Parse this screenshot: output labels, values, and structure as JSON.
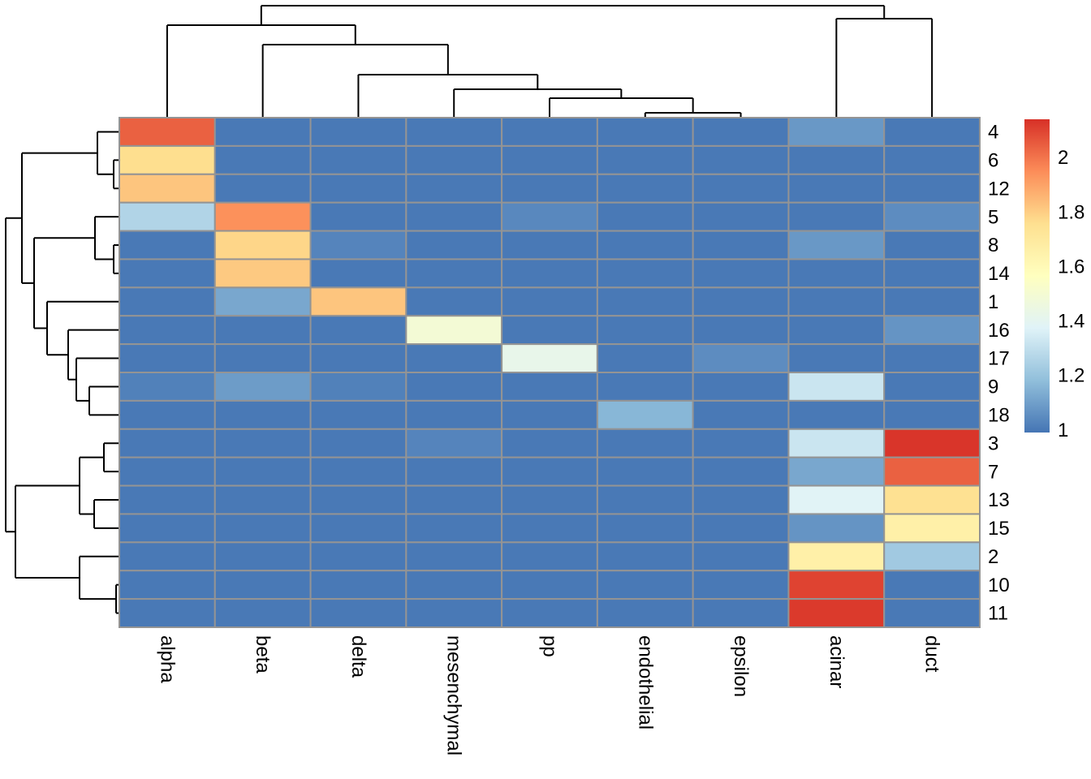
{
  "figure": {
    "kind": "clustered heatmap with row and column dendrograms",
    "background": "#ffffff"
  },
  "chart_data": {
    "type": "heatmap",
    "columns": [
      "alpha",
      "beta",
      "delta",
      "mesenchymal",
      "pp",
      "endothelial",
      "epsilon",
      "acinar",
      "duct"
    ],
    "rows": [
      "4",
      "6",
      "12",
      "5",
      "8",
      "14",
      "1",
      "16",
      "17",
      "9",
      "18",
      "3",
      "7",
      "13",
      "15",
      "2",
      "10",
      "11"
    ],
    "values": [
      [
        2.04,
        1.0,
        1.0,
        1.0,
        1.0,
        1.0,
        1.0,
        1.08,
        1.0
      ],
      [
        1.76,
        1.0,
        1.0,
        1.0,
        1.0,
        1.0,
        1.0,
        1.0,
        1.0
      ],
      [
        1.82,
        1.0,
        1.0,
        1.0,
        1.0,
        1.0,
        1.0,
        1.0,
        1.0
      ],
      [
        1.26,
        1.94,
        1.0,
        1.0,
        1.04,
        1.0,
        1.0,
        1.0,
        1.05
      ],
      [
        1.0,
        1.78,
        1.03,
        1.0,
        1.0,
        1.0,
        1.0,
        1.08,
        1.0
      ],
      [
        1.0,
        1.81,
        1.0,
        1.0,
        1.0,
        1.0,
        1.0,
        1.0,
        1.0
      ],
      [
        1.0,
        1.12,
        1.82,
        1.0,
        1.0,
        1.0,
        1.0,
        1.0,
        1.0
      ],
      [
        1.0,
        1.0,
        1.0,
        1.49,
        1.0,
        1.0,
        1.0,
        1.0,
        1.07
      ],
      [
        1.0,
        1.0,
        1.0,
        1.0,
        1.42,
        1.0,
        1.05,
        1.0,
        1.0
      ],
      [
        1.02,
        1.09,
        1.02,
        1.0,
        1.0,
        1.0,
        1.0,
        1.32,
        1.0
      ],
      [
        1.0,
        1.0,
        1.0,
        1.0,
        1.0,
        1.16,
        1.0,
        1.0,
        1.0
      ],
      [
        1.0,
        1.0,
        1.0,
        1.03,
        1.0,
        1.0,
        1.0,
        1.32,
        2.13
      ],
      [
        1.0,
        1.0,
        1.0,
        1.0,
        1.0,
        1.0,
        1.0,
        1.12,
        2.04
      ],
      [
        1.0,
        1.0,
        1.0,
        1.0,
        1.0,
        1.0,
        1.0,
        1.38,
        1.75
      ],
      [
        1.0,
        1.0,
        1.0,
        1.0,
        1.0,
        1.0,
        1.0,
        1.07,
        1.66
      ],
      [
        1.0,
        1.0,
        1.0,
        1.0,
        1.0,
        1.0,
        1.0,
        1.66,
        1.22
      ],
      [
        1.0,
        1.0,
        1.0,
        1.0,
        1.0,
        1.0,
        1.0,
        2.1,
        1.0
      ],
      [
        1.0,
        1.0,
        1.0,
        1.0,
        1.0,
        1.0,
        1.0,
        2.12,
        1.0
      ]
    ],
    "color_scale": {
      "palette": [
        "#4575B4",
        "#91BFDB",
        "#E0F3F8",
        "#FFFFBF",
        "#FEE090",
        "#FC8D59",
        "#D73027"
      ],
      "vmin": 0.99,
      "vmax": 2.14
    },
    "legend_ticks": [
      "2",
      "1.8",
      "1.6",
      "1.4",
      "1.2",
      "1"
    ],
    "legend_tick_values": [
      2,
      1.8,
      1.6,
      1.4,
      1.2,
      1
    ],
    "grid_color": "#949494",
    "dendrogram_color": "#000000",
    "row_dendrogram_merges": [
      {
        "a": "6",
        "b": "12",
        "pos": 140
      },
      {
        "a": "4",
        "b": "m0",
        "pos": 120
      },
      {
        "a": "8",
        "b": "14",
        "pos": 140
      },
      {
        "a": "5",
        "b": "m2",
        "pos": 117
      },
      {
        "a": "9",
        "b": "18",
        "pos": 110
      },
      {
        "a": "17",
        "b": "m4",
        "pos": 94
      },
      {
        "a": "16",
        "b": "m5",
        "pos": 84
      },
      {
        "a": "1",
        "b": "m6",
        "pos": 58
      },
      {
        "a": "m3",
        "b": "m7",
        "pos": 42
      },
      {
        "a": "m1",
        "b": "m8",
        "pos": 27
      },
      {
        "a": "3",
        "b": "7",
        "pos": 128
      },
      {
        "a": "13",
        "b": "15",
        "pos": 116
      },
      {
        "a": "m10",
        "b": "m11",
        "pos": 98
      },
      {
        "a": "10",
        "b": "11",
        "pos": 143
      },
      {
        "a": "2",
        "b": "m13",
        "pos": 98
      },
      {
        "a": "m12",
        "b": "m14",
        "pos": 19
      },
      {
        "a": "m9",
        "b": "m15",
        "pos": 7
      }
    ],
    "col_dendrogram_merges": [
      {
        "a": "endothelial",
        "b": "epsilon",
        "pos": 139
      },
      {
        "a": "pp",
        "b": "m0",
        "pos": 121
      },
      {
        "a": "mesenchymal",
        "b": "m1",
        "pos": 110
      },
      {
        "a": "delta",
        "b": "m2",
        "pos": 92
      },
      {
        "a": "beta",
        "b": "m3",
        "pos": 55
      },
      {
        "a": "alpha",
        "b": "m4",
        "pos": 31
      },
      {
        "a": "acinar",
        "b": "duct",
        "pos": 23
      },
      {
        "a": "m5",
        "b": "m6",
        "pos": 7
      }
    ]
  }
}
